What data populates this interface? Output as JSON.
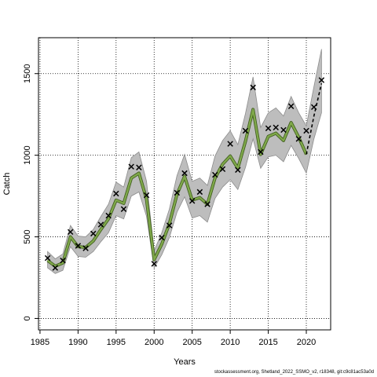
{
  "chart_data": {
    "type": "line",
    "xlabel": "Years",
    "ylabel": "Catch",
    "xlim": [
      1984.8,
      2023.2
    ],
    "ylim": [
      -70,
      1720
    ],
    "xticks": [
      1985,
      1990,
      1995,
      2000,
      2005,
      2010,
      2015,
      2020
    ],
    "yticks": [
      0,
      500,
      1000,
      1500
    ],
    "grid": true,
    "grid_style": "dotted",
    "colors": {
      "band": "#bdbdbd",
      "band_edge": "#8c8c8c",
      "fit_line": "#7fa84a",
      "fit_line_outline": "#3d5a1c",
      "observed_marker": "#000000",
      "forecast_line": "#000000"
    },
    "observed": {
      "x": [
        1986,
        1987,
        1988,
        1989,
        1990,
        1991,
        1992,
        1993,
        1994,
        1995,
        1996,
        1997,
        1998,
        1999,
        2000,
        2001,
        2002,
        2003,
        2004,
        2005,
        2006,
        2007,
        2008,
        2009,
        2010,
        2011,
        2012,
        2013,
        2014,
        2015,
        2016,
        2017,
        2018,
        2019,
        2020,
        2021,
        2022
      ],
      "y": [
        370,
        310,
        355,
        530,
        445,
        430,
        520,
        575,
        630,
        765,
        670,
        930,
        925,
        755,
        335,
        495,
        570,
        770,
        890,
        720,
        775,
        700,
        880,
        915,
        1070,
        910,
        1150,
        1415,
        1020,
        1165,
        1170,
        1155,
        1300,
        1100,
        1150,
        1295,
        1460
      ]
    },
    "fit": {
      "x": [
        1986,
        1987,
        1988,
        1989,
        1990,
        1991,
        1992,
        1993,
        1994,
        1995,
        1996,
        1997,
        1998,
        1999,
        2000,
        2001,
        2002,
        2003,
        2004,
        2005,
        2006,
        2007,
        2008,
        2009,
        2010,
        2011,
        2012,
        2013,
        2014,
        2015,
        2016,
        2017,
        2018,
        2019,
        2020
      ],
      "y": [
        355,
        320,
        340,
        500,
        440,
        435,
        475,
        545,
        610,
        725,
        705,
        860,
        890,
        730,
        360,
        455,
        580,
        760,
        870,
        725,
        740,
        700,
        860,
        945,
        995,
        920,
        1085,
        1280,
        1005,
        1115,
        1135,
        1090,
        1200,
        1110,
        1005
      ]
    },
    "band": {
      "x": [
        1986,
        1987,
        1988,
        1989,
        1990,
        1991,
        1992,
        1993,
        1994,
        1995,
        1996,
        1997,
        1998,
        1999,
        2000,
        2001,
        2002,
        2003,
        2004,
        2005,
        2006,
        2007,
        2008,
        2009,
        2010,
        2011,
        2012,
        2013,
        2014,
        2015,
        2016,
        2017,
        2018,
        2019,
        2020,
        2021,
        2022
      ],
      "lower": [
        310,
        275,
        295,
        440,
        380,
        375,
        410,
        470,
        525,
        630,
        610,
        750,
        775,
        625,
        310,
        390,
        495,
        650,
        745,
        615,
        630,
        590,
        735,
        805,
        850,
        790,
        925,
        1100,
        920,
        990,
        1000,
        960,
        1060,
        980,
        890,
        1100,
        1260
      ],
      "upper": [
        410,
        365,
        395,
        570,
        505,
        500,
        545,
        625,
        700,
        835,
        805,
        985,
        1020,
        840,
        415,
        525,
        670,
        875,
        1005,
        840,
        860,
        815,
        995,
        1090,
        1150,
        1065,
        1255,
        1480,
        1170,
        1260,
        1290,
        1240,
        1360,
        1260,
        1180,
        1420,
        1650
      ]
    },
    "forecast": {
      "x": [
        2020,
        2021,
        2022
      ],
      "y": [
        1005,
        1240,
        1440
      ]
    }
  },
  "footer": {
    "credit": "stockassessment.org, Shetland_2022_SSMO_v2, r18348, git:c9c81ac53a0d"
  }
}
